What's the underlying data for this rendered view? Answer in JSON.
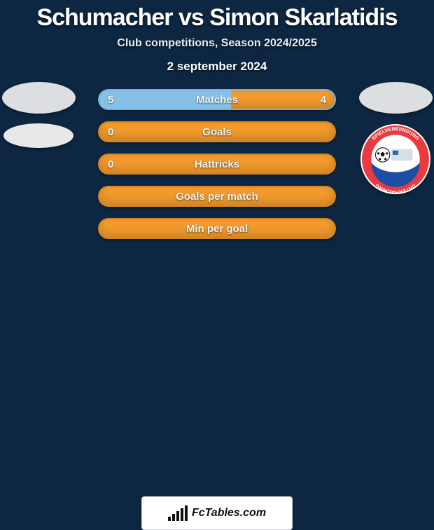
{
  "title": {
    "text": "Schumacher vs Simon Skarlatidis",
    "fontsize": 34,
    "color": "#ffffff"
  },
  "subtitle": {
    "text": "Club competitions, Season 2024/2025",
    "fontsize": 16
  },
  "date": {
    "text": "2 september 2024",
    "fontsize": 17
  },
  "background_color": "#0d2742",
  "accent_colors": {
    "sky": "#88c0e5",
    "orange": "#f29a2d",
    "bar_border_sky": "#6fb4df",
    "bar_border_orange": "#d6841f"
  },
  "credit": {
    "text": "FcTables.com",
    "fontsize": 16
  },
  "left": {
    "has_portrait": true,
    "has_club": true
  },
  "right": {
    "has_portrait": true,
    "has_club_badge": true,
    "club_badge": {
      "ring": "#ffffff",
      "inner": "#e83a3f",
      "bottom": "#1c4fa3",
      "text_top": "SPIELVEREINIGUNG",
      "text_bottom": "UNTERHACHING"
    }
  },
  "bars": [
    {
      "label": "Matches",
      "left_val": "5",
      "right_val": "4",
      "left_share": 0.56,
      "right_share": 0.44,
      "label_fontsize": 15,
      "val_fontsize": 15
    },
    {
      "label": "Goals",
      "left_val": "0",
      "right_val": "",
      "left_share": 0.0,
      "right_share": 1.0,
      "label_fontsize": 15,
      "val_fontsize": 15
    },
    {
      "label": "Hattricks",
      "left_val": "0",
      "right_val": "",
      "left_share": 0.0,
      "right_share": 1.0,
      "label_fontsize": 15,
      "val_fontsize": 15
    },
    {
      "label": "Goals per match",
      "left_val": "",
      "right_val": "",
      "left_share": 0.0,
      "right_share": 1.0,
      "label_fontsize": 15,
      "val_fontsize": 15
    },
    {
      "label": "Min per goal",
      "left_val": "",
      "right_val": "",
      "left_share": 0.0,
      "right_share": 1.0,
      "label_fontsize": 15,
      "val_fontsize": 15
    }
  ],
  "bar_style": {
    "height": 30,
    "gap": 16,
    "radius": 16
  }
}
